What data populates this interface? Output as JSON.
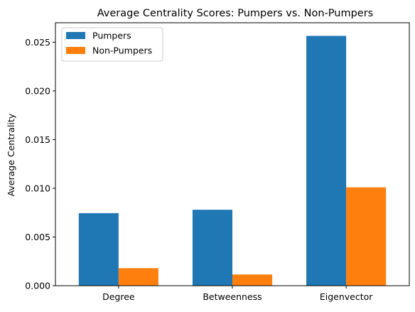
{
  "chart_data": {
    "type": "bar",
    "title": "Average Centrality Scores: Pumpers vs. Non-Pumpers",
    "xlabel": "",
    "ylabel": "Average Centrality",
    "categories": [
      "Degree",
      "Betweenness",
      "Eigenvector"
    ],
    "series": [
      {
        "name": "Pumpers",
        "values": [
          0.00745,
          0.0078,
          0.02565
        ],
        "color": "#1f77b4"
      },
      {
        "name": "Non-Pumpers",
        "values": [
          0.0018,
          0.00115,
          0.0101
        ],
        "color": "#ff7f0e"
      }
    ],
    "ylim": [
      0,
      0.027
    ],
    "yticks": [
      "0.000",
      "0.005",
      "0.010",
      "0.015",
      "0.020",
      "0.025"
    ],
    "grid": false,
    "legend_position": "top-left"
  }
}
